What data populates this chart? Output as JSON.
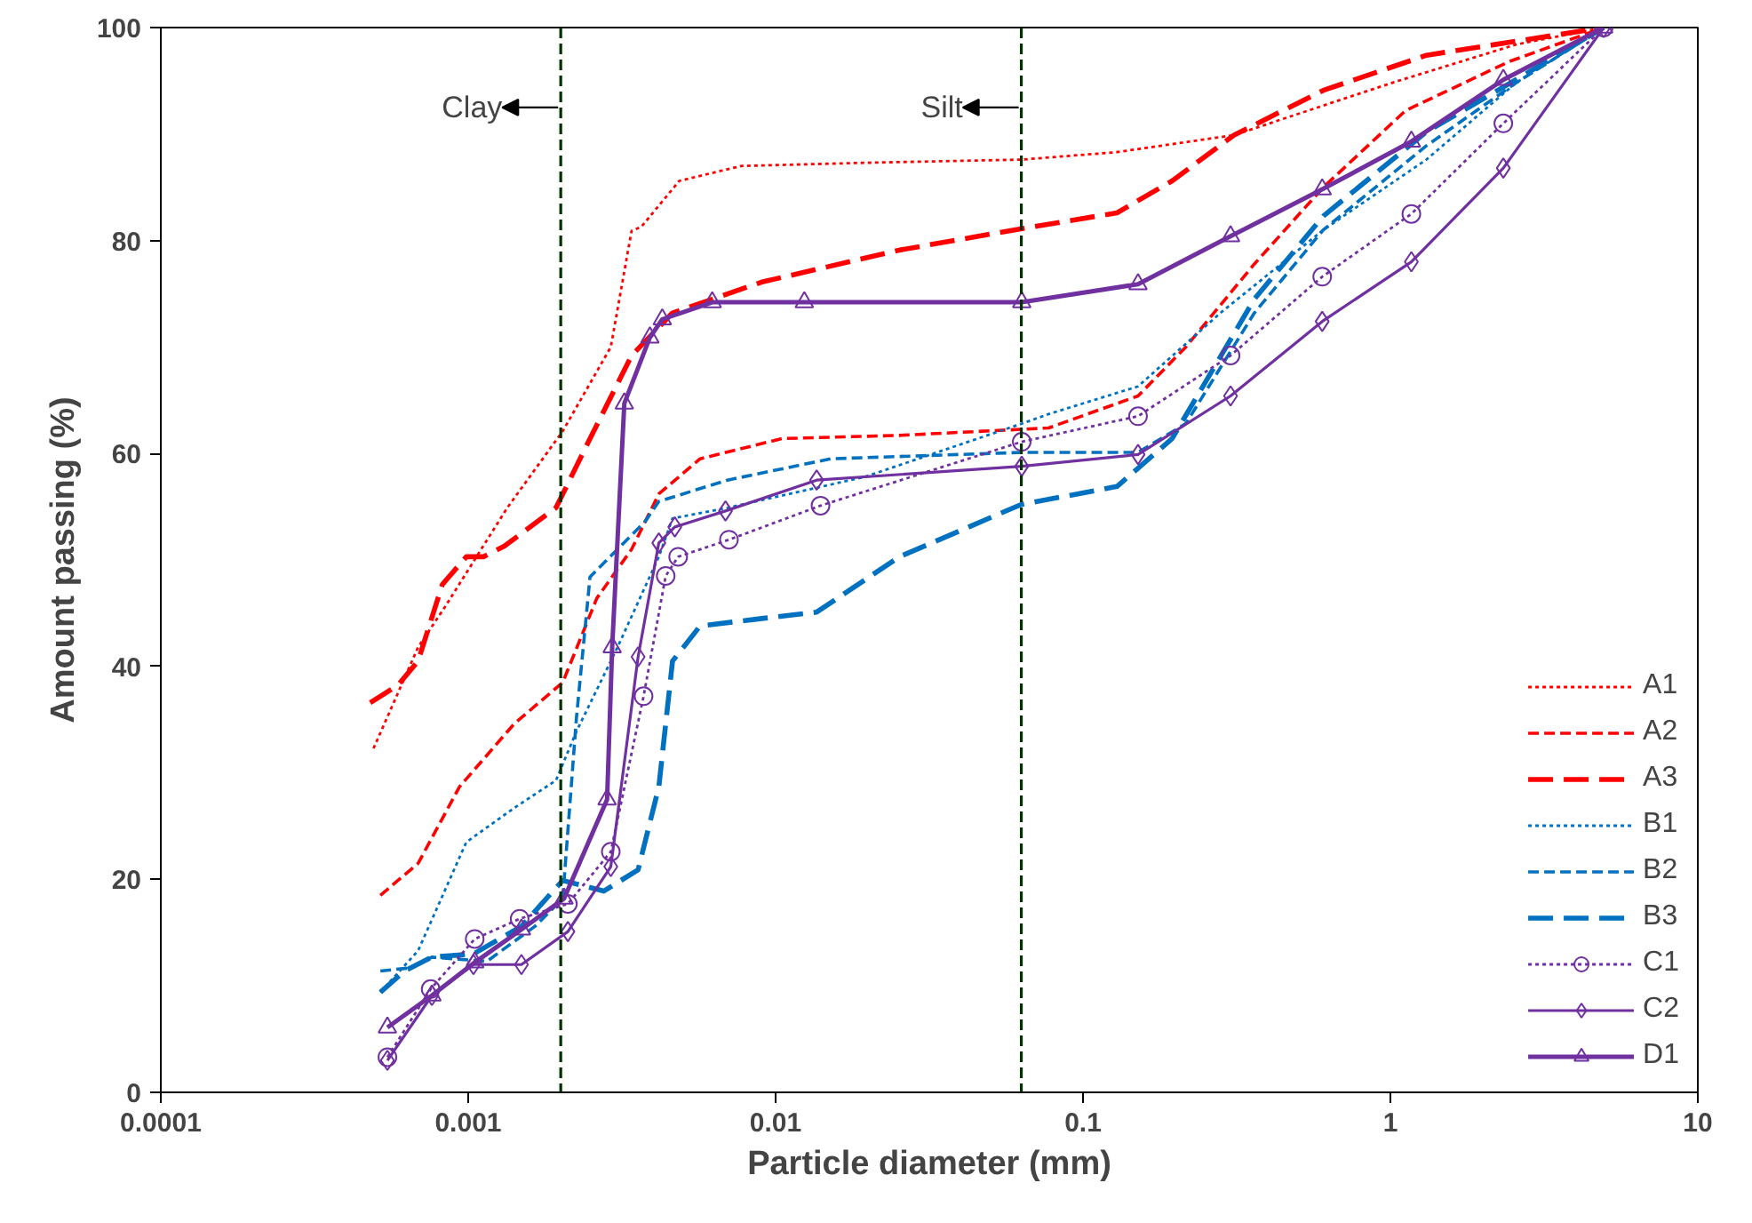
{
  "chart_data": {
    "type": "line",
    "xlabel": "Particle diameter (mm)",
    "ylabel": "Amount passing (%)",
    "log": "x",
    "xlim": [
      0.0001,
      10
    ],
    "xticks": [
      0.0001,
      0.001,
      0.01,
      0.1,
      1,
      10
    ],
    "ylim": [
      0,
      100
    ],
    "yticks": [
      0,
      20,
      40,
      60,
      80,
      100
    ],
    "grid": false,
    "legend": "bottom right",
    "ref_lines": [
      {
        "axis": "x",
        "value": 0.002,
        "label": "Clay",
        "color": "#003300",
        "line_style": "dashed"
      },
      {
        "axis": "x",
        "value": 0.063,
        "label": "Silt",
        "color": "#003300",
        "line_style": "dashed"
      }
    ],
    "series": [
      {
        "name": "A1",
        "color": "#ff0000",
        "line_style": "dotted",
        "marker": "none",
        "x": [
          0.000492,
          0.000687,
          0.000845,
          0.00134,
          0.00203,
          0.00291,
          0.0034,
          0.00366,
          0.00486,
          0.00773,
          0.0195,
          0.0632,
          0.129,
          0.31,
          1.01,
          2.56,
          4.94
        ],
        "values": [
          32.3,
          41.8,
          45.7,
          54.9,
          62.1,
          70.0,
          80.9,
          81.3,
          85.6,
          87.0,
          87.3,
          87.6,
          88.3,
          89.9,
          94.8,
          98.4,
          100
        ]
      },
      {
        "name": "A2",
        "color": "#ff0000",
        "line_style": "dashed",
        "marker": "none",
        "x": [
          0.000518,
          0.000687,
          0.000937,
          0.00141,
          0.00203,
          0.00262,
          0.0034,
          0.00417,
          0.00568,
          0.0105,
          0.0253,
          0.0773,
          0.151,
          0.216,
          0.361,
          0.605,
          1.12,
          2.43,
          4.94
        ],
        "values": [
          18.5,
          21.5,
          28.7,
          34.6,
          38.5,
          46.4,
          51.0,
          56.2,
          59.5,
          61.4,
          61.7,
          62.4,
          65.4,
          70.0,
          77.8,
          85.0,
          92.2,
          96.8,
          100
        ]
      },
      {
        "name": "A3",
        "color": "#ff0000",
        "line_style": "longdash",
        "marker": "none",
        "x": [
          0.00048,
          0.000589,
          0.000687,
          0.000824,
          0.000986,
          0.00112,
          0.00131,
          0.00193,
          0.00249,
          0.0034,
          0.00462,
          0.00902,
          0.0253,
          0.0628,
          0.129,
          0.195,
          0.31,
          0.605,
          1.31,
          4.94
        ],
        "values": [
          36.6,
          38.2,
          40.5,
          47.7,
          50.3,
          50.3,
          51.3,
          54.9,
          61.4,
          69.2,
          73.2,
          76.1,
          79.1,
          81.1,
          82.6,
          85.6,
          89.9,
          94.1,
          97.4,
          100
        ]
      },
      {
        "name": "B1",
        "color": "#0070c0",
        "line_style": "dotted",
        "marker": "none",
        "x": [
          0.000518,
          0.000687,
          0.000986,
          0.00141,
          0.00193,
          0.00225,
          0.00306,
          0.00417,
          0.00462,
          0.00698,
          0.0195,
          0.0632,
          0.0773,
          0.151,
          0.28,
          0.605,
          1.31,
          2.56,
          4.94
        ],
        "values": [
          9.4,
          13.3,
          23.5,
          26.7,
          29.3,
          33.9,
          41.8,
          50.3,
          53.9,
          54.9,
          57.8,
          62.8,
          63.7,
          66.3,
          73.2,
          81.0,
          87.6,
          94.8,
          100
        ]
      },
      {
        "name": "B2",
        "color": "#0070c0",
        "line_style": "dashed",
        "marker": "none",
        "x": [
          0.000518,
          0.000653,
          0.000762,
          0.00115,
          0.00165,
          0.00203,
          0.00225,
          0.00249,
          0.00306,
          0.00376,
          0.00417,
          0.00698,
          0.0151,
          0.0632,
          0.0773,
          0.151,
          0.216,
          0.361,
          0.605,
          1.31,
          2.56,
          4.94
        ],
        "values": [
          11.4,
          11.7,
          12.7,
          12.3,
          15.6,
          18.2,
          35.2,
          48.4,
          51.0,
          53.6,
          55.5,
          57.5,
          59.5,
          60.1,
          60.1,
          60.1,
          62.8,
          73.2,
          81.0,
          88.9,
          94.8,
          100
        ]
      },
      {
        "name": "B3",
        "color": "#0070c0",
        "line_style": "longdash",
        "marker": "none",
        "x": [
          0.000518,
          0.000621,
          0.000762,
          0.00104,
          0.00149,
          0.00203,
          0.00276,
          0.00357,
          0.00417,
          0.00462,
          0.00568,
          0.00902,
          0.0136,
          0.0253,
          0.0628,
          0.129,
          0.195,
          0.361,
          0.605,
          1.31,
          2.56,
          4.94
        ],
        "values": [
          9.4,
          11.4,
          12.7,
          13.0,
          15.6,
          19.9,
          18.9,
          20.9,
          28.7,
          40.5,
          43.8,
          44.5,
          45.1,
          50.3,
          55.2,
          56.9,
          61.4,
          74.5,
          82.3,
          90.2,
          95.1,
          100
        ]
      },
      {
        "name": "C1",
        "color": "#7030a0",
        "line_style": "dotted",
        "marker": "circle",
        "x": [
          0.000546,
          0.000755,
          0.00105,
          0.00147,
          0.00211,
          0.00291,
          0.00372,
          0.00439,
          0.00482,
          0.00705,
          0.014,
          0.0632,
          0.151,
          0.302,
          0.6,
          1.17,
          2.33,
          4.94
        ],
        "values": [
          3.3,
          9.7,
          14.4,
          16.3,
          17.7,
          22.6,
          37.2,
          48.5,
          50.3,
          51.9,
          55.1,
          61.1,
          63.5,
          69.2,
          76.6,
          82.5,
          91.0,
          100
        ]
      },
      {
        "name": "C2",
        "color": "#7030a0",
        "line_style": "solid",
        "marker": "diamond",
        "x": [
          0.000546,
          0.000762,
          0.00104,
          0.00149,
          0.00211,
          0.00291,
          0.00357,
          0.00417,
          0.0047,
          0.00687,
          0.0136,
          0.0632,
          0.151,
          0.302,
          0.6,
          1.17,
          2.33,
          4.94
        ],
        "values": [
          3.0,
          9.1,
          12.0,
          12.0,
          15.1,
          21.2,
          40.9,
          51.6,
          53.1,
          54.6,
          57.5,
          58.8,
          59.9,
          65.4,
          72.4,
          78.0,
          86.8,
          100
        ]
      },
      {
        "name": "D1",
        "color": "#7030a0",
        "line_style": "solid",
        "marker": "triangle",
        "x": [
          0.000546,
          0.000762,
          0.00105,
          0.00149,
          0.00205,
          0.00283,
          0.00294,
          0.00322,
          0.0039,
          0.00428,
          0.00622,
          0.0124,
          0.0632,
          0.151,
          0.302,
          0.6,
          1.17,
          2.33,
          4.94
        ],
        "values": [
          6.1,
          9.1,
          12.2,
          15.3,
          18.2,
          27.5,
          41.8,
          64.7,
          70.9,
          72.6,
          74.2,
          74.2,
          74.2,
          75.9,
          80.4,
          84.8,
          89.3,
          95.1,
          100
        ]
      }
    ]
  }
}
